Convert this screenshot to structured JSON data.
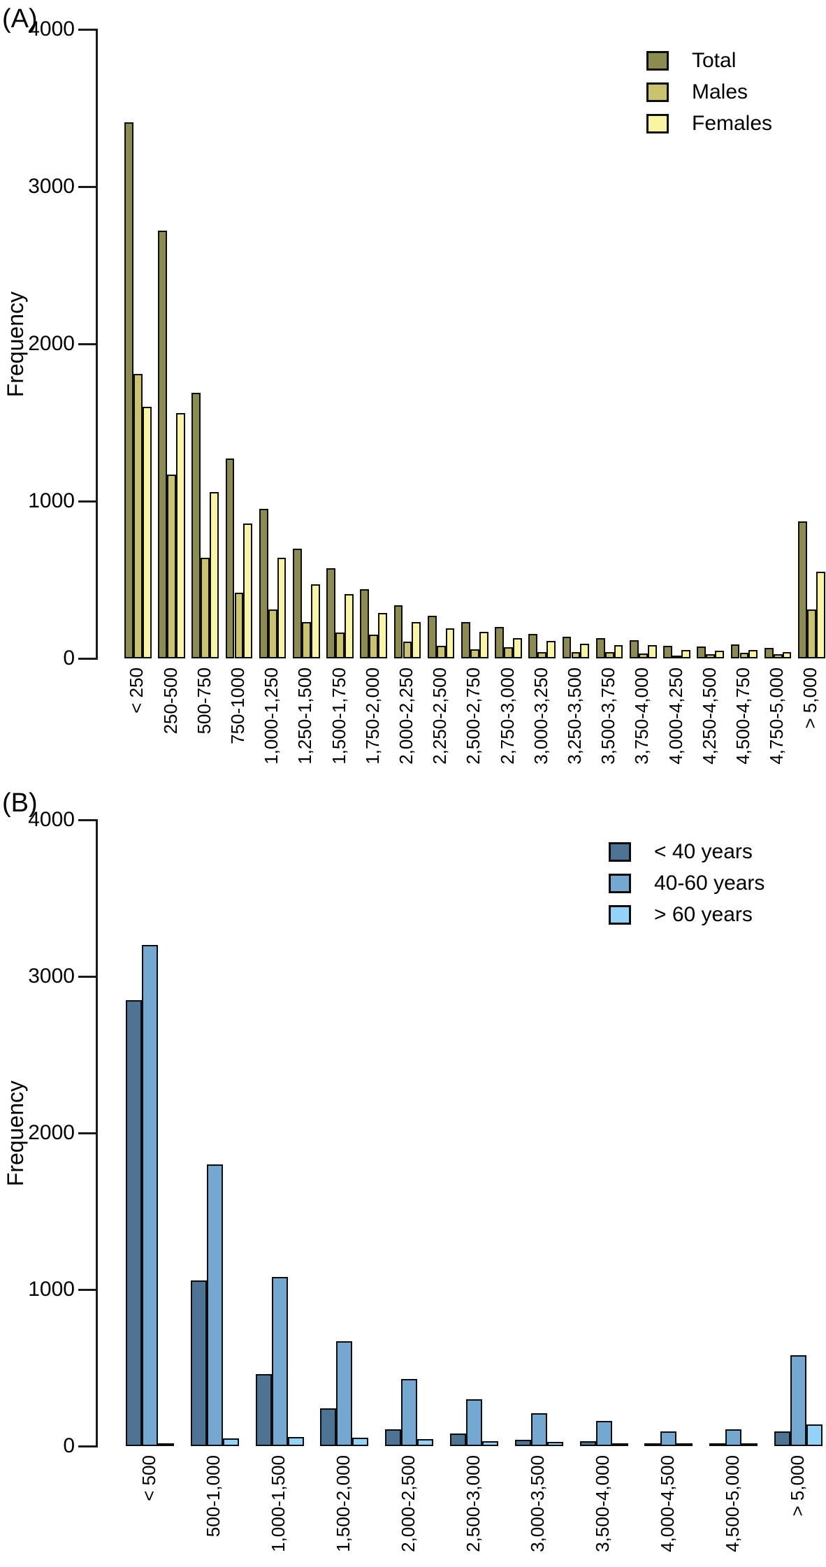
{
  "chart_data": [
    {
      "type": "bar",
      "panel": "(A)",
      "ylabel": "Frequency",
      "ylim": [
        0,
        4000
      ],
      "yticks": [
        0,
        1000,
        2000,
        3000,
        4000
      ],
      "grid": false,
      "legend_position": "top-right-inside",
      "categories": [
        "< 250",
        "250-500",
        "500-750",
        "750-1000",
        "1,000-1,250",
        "1,250-1,500",
        "1,500-1,750",
        "1,750-2,000",
        "2,000-2,250",
        "2,250-2,500",
        "2,500-2,750",
        "2,750-3,000",
        "3,000-3,250",
        "3,250-3,500",
        "3,500-3,750",
        "3,750-4,000",
        "4,000-4,250",
        "4,250-4,500",
        "4,500-4,750",
        "4,750-5,000",
        "> 5,000"
      ],
      "series": [
        {
          "name": "Total",
          "color": "#8B8B52",
          "values": [
            3410,
            2720,
            1690,
            1270,
            950,
            700,
            575,
            440,
            340,
            270,
            230,
            200,
            155,
            140,
            130,
            115,
            80,
            75,
            90,
            65,
            870
          ]
        },
        {
          "name": "Males",
          "color": "#CBC26E",
          "values": [
            1810,
            1170,
            640,
            420,
            310,
            230,
            165,
            150,
            105,
            80,
            60,
            70,
            40,
            40,
            40,
            30,
            20,
            25,
            35,
            25,
            310
          ]
        },
        {
          "name": "Females",
          "color": "#FAF5A5",
          "values": [
            1600,
            1560,
            1060,
            860,
            640,
            470,
            410,
            290,
            230,
            190,
            170,
            130,
            110,
            95,
            85,
            85,
            55,
            50,
            55,
            40,
            550
          ]
        }
      ]
    },
    {
      "type": "bar",
      "panel": "(B)",
      "ylabel": "Frequency",
      "ylim": [
        0,
        4000
      ],
      "yticks": [
        0,
        1000,
        2000,
        3000,
        4000
      ],
      "grid": false,
      "legend_position": "top-right-inside",
      "categories": [
        "< 500",
        "500-1,000",
        "1,000-1,500",
        "1,500-2,000",
        "2,000-2,500",
        "2,500-3,000",
        "3,000-3,500",
        "3,500-4,000",
        "4,000-4,500",
        "4,500-5,000",
        "> 5,000"
      ],
      "series": [
        {
          "name": "< 40 years",
          "color": "#4E7394",
          "values": [
            2850,
            1060,
            460,
            240,
            105,
            80,
            40,
            30,
            15,
            10,
            95
          ]
        },
        {
          "name": "40-60 years",
          "color": "#74A8D0",
          "values": [
            3200,
            1800,
            1080,
            670,
            430,
            300,
            210,
            160,
            95,
            105,
            580
          ]
        },
        {
          "name": "> 60 years",
          "color": "#95D2F7",
          "values": [
            15,
            50,
            60,
            55,
            45,
            30,
            25,
            20,
            20,
            20,
            140
          ]
        }
      ]
    }
  ]
}
